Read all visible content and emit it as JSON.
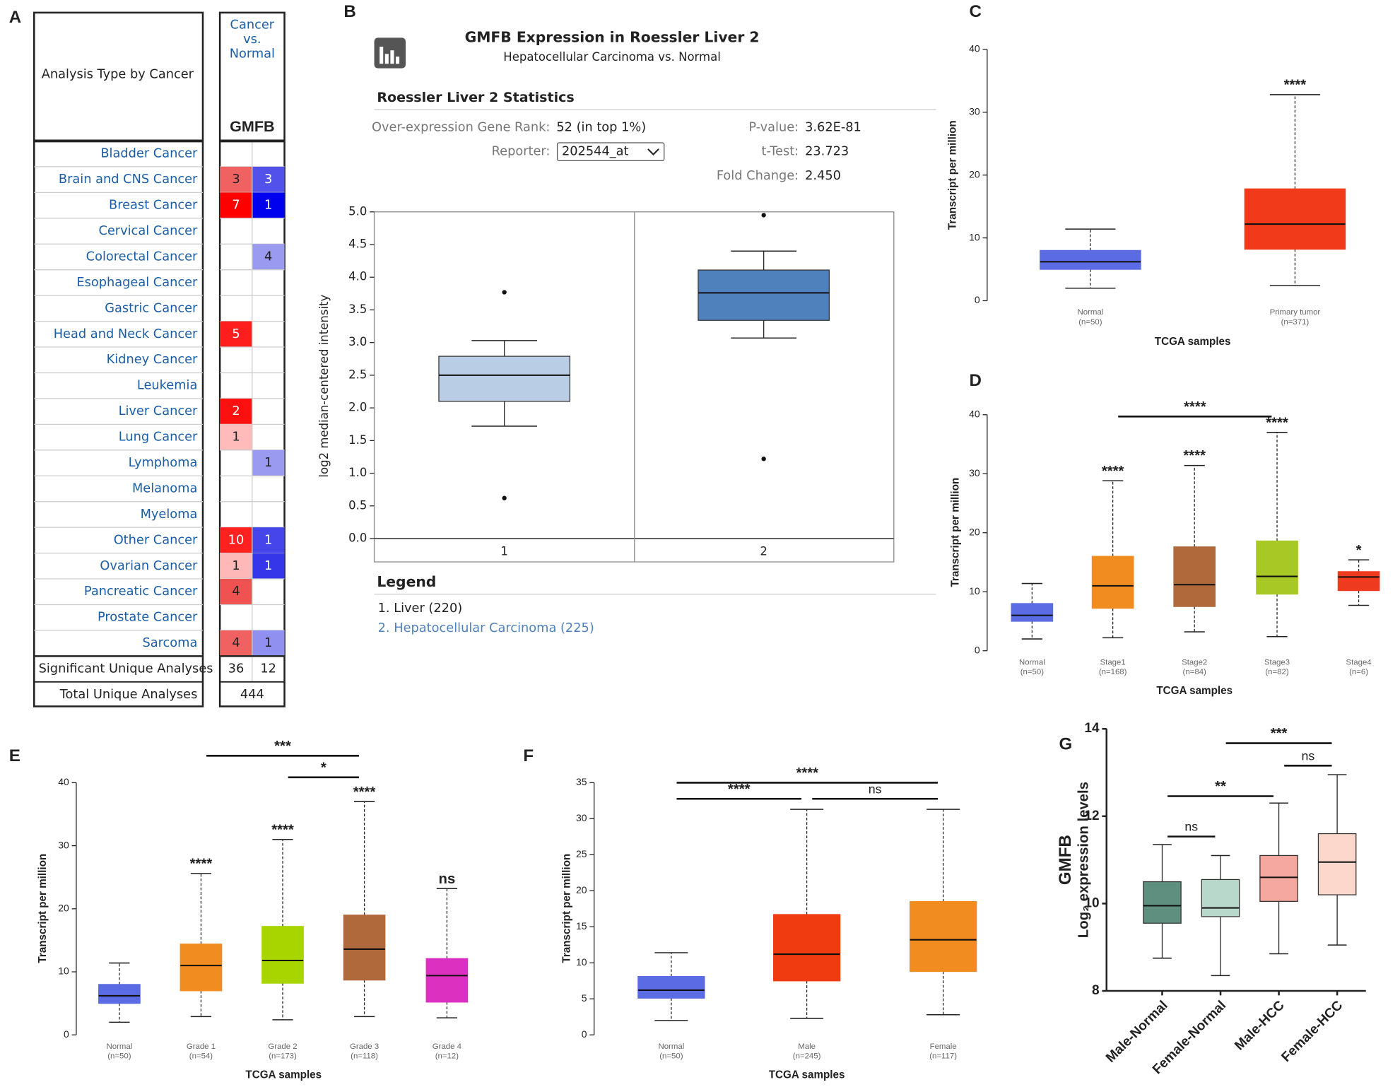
{
  "panel_labels": [
    "A",
    "B",
    "C",
    "D",
    "E",
    "F",
    "G"
  ],
  "table": {
    "header": "Analysis Type by Cancer",
    "compare_lines": [
      "Cancer",
      "vs.",
      "Normal"
    ],
    "gene": "GMFB",
    "rows": [
      {
        "name": "Bladder Cancer",
        "up": null,
        "down": null
      },
      {
        "name": "Brain and CNS Cancer",
        "up": 3,
        "down": 3,
        "up_color": "#f06262",
        "down_color": "#5252ea"
      },
      {
        "name": "Breast Cancer",
        "up": 7,
        "down": 1,
        "up_color": "#ff0000",
        "down_color": "#0000ee"
      },
      {
        "name": "Cervical Cancer",
        "up": null,
        "down": null
      },
      {
        "name": "Colorectal Cancer",
        "up": null,
        "down": 4,
        "down_color": "#9a9af0"
      },
      {
        "name": "Esophageal Cancer",
        "up": null,
        "down": null
      },
      {
        "name": "Gastric Cancer",
        "up": null,
        "down": null
      },
      {
        "name": "Head and Neck Cancer",
        "up": 5,
        "down": null,
        "up_color": "#ff1e1e"
      },
      {
        "name": "Kidney Cancer",
        "up": null,
        "down": null
      },
      {
        "name": "Leukemia",
        "up": null,
        "down": null
      },
      {
        "name": "Liver Cancer",
        "up": 2,
        "down": null,
        "up_color": "#ff1010"
      },
      {
        "name": "Lung Cancer",
        "up": 1,
        "down": null,
        "up_color": "#ffbaba"
      },
      {
        "name": "Lymphoma",
        "up": null,
        "down": 1,
        "down_color": "#9a9af0"
      },
      {
        "name": "Melanoma",
        "up": null,
        "down": null
      },
      {
        "name": "Myeloma",
        "up": null,
        "down": null
      },
      {
        "name": "Other Cancer",
        "up": 10,
        "down": 1,
        "up_color": "#ff2020",
        "down_color": "#4545ea"
      },
      {
        "name": "Ovarian Cancer",
        "up": 1,
        "down": 1,
        "up_color": "#ffb8b8",
        "down_color": "#3535ea"
      },
      {
        "name": "Pancreatic Cancer",
        "up": 4,
        "down": null,
        "up_color": "#f05252"
      },
      {
        "name": "Prostate Cancer",
        "up": null,
        "down": null
      },
      {
        "name": "Sarcoma",
        "up": 4,
        "down": 1,
        "up_color": "#f06262",
        "down_color": "#9090f0"
      }
    ],
    "significant": {
      "label": "Significant Unique Analyses",
      "up": 36,
      "down": 12
    },
    "total": {
      "label": "Total Unique Analyses",
      "value": 444
    }
  },
  "stats": {
    "title": "Roessler Liver 2 Statistics",
    "items": [
      {
        "label": "Over-expression Gene Rank:",
        "value": "52 (in top 1%)"
      },
      {
        "label": "Reporter:",
        "value": "202544_at"
      },
      {
        "label": "P-value:",
        "value": "3.62E-81"
      },
      {
        "label": "t-Test:",
        "value": "23.723"
      },
      {
        "label": "Fold Change:",
        "value": "2.450"
      }
    ]
  },
  "chart_data": [
    {
      "type": "box",
      "title": "GMFB Expression in Roessler Liver 2",
      "subtitle": "Hepatocellular Carcinoma vs. Normal",
      "ylabel": "log2 median-centered intensity",
      "categories": [
        "1",
        "2"
      ],
      "frame": true,
      "whisker_style": "solid",
      "ylim": [
        0,
        5
      ],
      "yticks": [
        {
          "value": 0,
          "label": "0.0"
        },
        0.5,
        {
          "value": 1,
          "label": "1.0"
        },
        1.5,
        {
          "value": 2,
          "label": "2.0"
        },
        2.5,
        {
          "value": 3,
          "label": "3.0"
        },
        3.5,
        {
          "value": 4,
          "label": "4.0"
        },
        4.5,
        {
          "value": 5,
          "label": "5.0"
        }
      ],
      "boxes": [
        {
          "min": 1.72,
          "q1": 2.1,
          "median": 2.5,
          "q3": 2.79,
          "max": 3.03,
          "outliers": [
            3.77,
            0.62
          ],
          "color": "#b9cde5"
        },
        {
          "min": 3.07,
          "q1": 3.34,
          "median": 3.76,
          "q3": 4.11,
          "max": 4.4,
          "outliers": [
            4.95,
            1.22
          ],
          "color": "#4f81bd"
        }
      ],
      "legend_title": "Legend",
      "legend": [
        {
          "text": "1. Liver (220)",
          "color": "#222222"
        },
        {
          "text": "2. Hepatocellular Carcinoma (225)",
          "color": "#4f81bd"
        }
      ]
    },
    {
      "type": "box",
      "ylabel": "Transcript per million",
      "xlabel": "TCGA samples",
      "whisker_style": "dashed",
      "categories": [
        "Normal",
        "Primary tumor"
      ],
      "counts": [
        "(n=50)",
        "(n=371)"
      ],
      "ylim": [
        0,
        40
      ],
      "yticks": [
        0,
        10,
        20,
        30,
        40
      ],
      "boxes": [
        {
          "min": 2,
          "q1": 5,
          "median": 6.2,
          "q3": 8,
          "max": 11.4,
          "color": "#5b6be3"
        },
        {
          "min": 2.4,
          "q1": 8.2,
          "median": 12.2,
          "q3": 17.8,
          "max": 32.8,
          "color": "#f03a1a"
        }
      ],
      "significance": [
        null,
        "****"
      ]
    },
    {
      "type": "box",
      "ylabel": "Transcript per million",
      "xlabel": "TCGA samples",
      "whisker_style": "dashed",
      "categories": [
        "Normal",
        "Stage1",
        "Stage2",
        "Stage3",
        "Stage4"
      ],
      "counts": [
        "(n=50)",
        "(n=168)",
        "(n=84)",
        "(n=82)",
        "(n=6)"
      ],
      "ylim": [
        0,
        40
      ],
      "yticks": [
        0,
        10,
        20,
        30,
        40
      ],
      "boxes": [
        {
          "min": 2,
          "q1": 5,
          "median": 6,
          "q3": 8,
          "max": 11.4,
          "color": "#5b6be3"
        },
        {
          "min": 2.2,
          "q1": 7.2,
          "median": 11,
          "q3": 16,
          "max": 28.8,
          "color": "#f08c20"
        },
        {
          "min": 3.2,
          "q1": 7.5,
          "median": 11.2,
          "q3": 17.6,
          "max": 31.4,
          "color": "#b0693a"
        },
        {
          "min": 2.4,
          "q1": 9.6,
          "median": 12.6,
          "q3": 18.6,
          "max": 37,
          "color": "#a8c826"
        },
        {
          "min": 7.7,
          "q1": 10.2,
          "median": 12.5,
          "q3": 13.4,
          "max": 15.4,
          "color": "#ee3a1e"
        }
      ],
      "significance": [
        null,
        "****",
        "****",
        "****",
        "*"
      ],
      "comparisons": [
        {
          "groups": [
            "Stage1",
            "Stage3"
          ],
          "label": "****"
        }
      ]
    },
    {
      "type": "box",
      "ylabel": "Transcript per million",
      "xlabel": "TCGA samples",
      "whisker_style": "dashed",
      "categories": [
        "Normal",
        "Grade 1",
        "Grade 2",
        "Grade 3",
        "Grade 4"
      ],
      "counts": [
        "(n=50)",
        "(n=54)",
        "(n=173)",
        "(n=118)",
        "(n=12)"
      ],
      "ylim": [
        0,
        40
      ],
      "yticks": [
        0,
        10,
        20,
        30,
        40
      ],
      "boxes": [
        {
          "min": 2,
          "q1": 5,
          "median": 6.2,
          "q3": 8,
          "max": 11.4,
          "color": "#5b6be3"
        },
        {
          "min": 2.9,
          "q1": 7,
          "median": 11,
          "q3": 14.4,
          "max": 25.6,
          "color": "#f08c20"
        },
        {
          "min": 2.4,
          "q1": 8.2,
          "median": 11.8,
          "q3": 17.2,
          "max": 31,
          "color": "#a8d400"
        },
        {
          "min": 2.9,
          "q1": 8.7,
          "median": 13.6,
          "q3": 19,
          "max": 37,
          "color": "#b0693a"
        },
        {
          "min": 2.7,
          "q1": 5.2,
          "median": 9.4,
          "q3": 12.1,
          "max": 23.2,
          "color": "#dc30c0"
        }
      ],
      "significance": [
        null,
        "****",
        "****",
        "****",
        "ns"
      ],
      "comparisons": [
        {
          "groups": [
            "Grade 1",
            "Grade 3"
          ],
          "label": "***"
        },
        {
          "groups": [
            "Grade 2",
            "Grade 3"
          ],
          "label": "*"
        }
      ]
    },
    {
      "type": "box",
      "ylabel": "Transcript per million",
      "xlabel": "TCGA samples",
      "whisker_style": "dashed",
      "categories": [
        "Normal",
        "Male",
        "Female"
      ],
      "counts": [
        "(n=50)",
        "(n=245)",
        "(n=117)"
      ],
      "ylim": [
        0,
        35
      ],
      "yticks": [
        0,
        5,
        10,
        15,
        20,
        25,
        30,
        35
      ],
      "boxes": [
        {
          "min": 2,
          "q1": 5.1,
          "median": 6.2,
          "q3": 8.1,
          "max": 11.4,
          "color": "#5b6be3"
        },
        {
          "min": 2.3,
          "q1": 7.5,
          "median": 11.2,
          "q3": 16.7,
          "max": 31.3,
          "color": "#f03a10"
        },
        {
          "min": 2.8,
          "q1": 8.8,
          "median": 13.2,
          "q3": 18.5,
          "max": 31.3,
          "color": "#f08c20"
        }
      ],
      "comparisons": [
        {
          "groups": [
            "Normal",
            "Female"
          ],
          "label": "****"
        },
        {
          "groups": [
            "Normal",
            "Male"
          ],
          "label": "****"
        },
        {
          "groups": [
            "Male",
            "Female"
          ],
          "label": "ns"
        }
      ]
    },
    {
      "type": "box",
      "ylabel": "Log₂ expression levels",
      "ylabel_title": "GMFB",
      "whisker_style": "solid",
      "x_axis": true,
      "categories": [
        "Male-Normal",
        "Female-Normal",
        "Male-HCC",
        "Female-HCC"
      ],
      "ylim": [
        8,
        14
      ],
      "yticks": [
        8,
        10,
        12,
        14
      ],
      "boxes": [
        {
          "min": 8.75,
          "q1": 9.55,
          "median": 9.95,
          "q3": 10.5,
          "max": 11.35,
          "color": "#5f8f7f"
        },
        {
          "min": 8.35,
          "q1": 9.7,
          "median": 9.9,
          "q3": 10.55,
          "max": 11.1,
          "color": "#b8d8cc"
        },
        {
          "min": 8.85,
          "q1": 10.05,
          "median": 10.6,
          "q3": 11.1,
          "max": 12.3,
          "color": "#f4a8a0"
        },
        {
          "min": 9.05,
          "q1": 10.2,
          "median": 10.95,
          "q3": 11.6,
          "max": 12.95,
          "color": "#fcd8cc"
        }
      ],
      "comparisons": [
        {
          "groups": [
            "Male-Normal",
            "Female-Normal"
          ],
          "label": "ns"
        },
        {
          "groups": [
            "Male-Normal",
            "Male-HCC"
          ],
          "label": "**"
        },
        {
          "groups": [
            "Male-HCC",
            "Female-HCC"
          ],
          "label": "ns"
        },
        {
          "groups": [
            "Female-Normal",
            "Female-HCC"
          ],
          "label": "***"
        }
      ]
    }
  ]
}
